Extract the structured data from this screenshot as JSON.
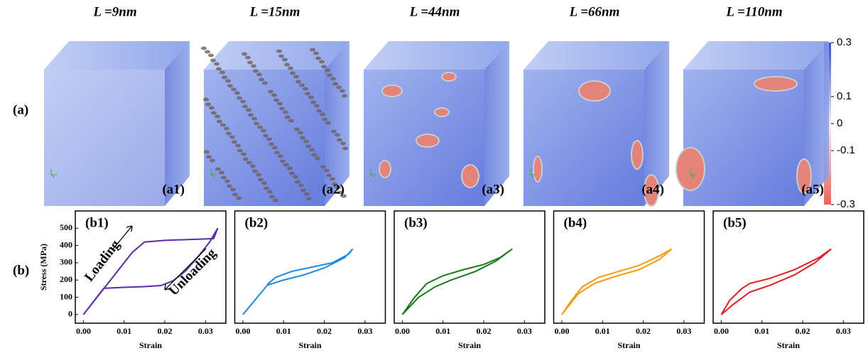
{
  "panel_labels": [
    "(a)",
    "(b)"
  ],
  "cubes": [
    {
      "title": "L =9nm",
      "label": "(a1)"
    },
    {
      "title": "L =15nm",
      "label": "(a2)"
    },
    {
      "title": "L =44nm",
      "label": "(a3)"
    },
    {
      "title": "L =66nm",
      "label": "(a4)"
    },
    {
      "title": "L =110nm",
      "label": "(a5)"
    }
  ],
  "colorbar": {
    "lim": [
      -0.3,
      0.3
    ],
    "ticks": [
      0.3,
      0.1,
      0,
      -0.1,
      -0.3
    ]
  },
  "chart_data": [
    {
      "type": "line",
      "title": "(b1)",
      "xlabel": "Strain",
      "ylabel": "Stress (MPa)",
      "color": "#5b2aa8",
      "x": [
        0,
        0.005,
        0.012,
        0.015,
        0.02,
        0.03,
        0.032,
        0.033,
        0.031,
        0.028,
        0.025,
        0.022,
        0.019,
        0.015,
        0.01,
        0.005,
        0
      ],
      "values": [
        0,
        150,
        360,
        420,
        430,
        438,
        440,
        500,
        420,
        330,
        250,
        195,
        168,
        162,
        158,
        152,
        0
      ],
      "xlim": [
        -0.002,
        0.035
      ],
      "ylim": [
        -50,
        600
      ],
      "xticks": [
        {
          "value": 0,
          "label": "0.00"
        },
        {
          "value": 0.01,
          "label": "0.01"
        },
        {
          "value": 0.02,
          "label": "0.02"
        },
        {
          "value": 0.03,
          "label": "0.03"
        }
      ],
      "yticks": [
        0,
        100,
        200,
        300,
        400,
        500
      ],
      "annotations": [
        "Loading",
        "Unloading"
      ]
    },
    {
      "type": "line",
      "title": "(b2)",
      "xlabel": "Strain",
      "color": "#1e88e5",
      "x": [
        0,
        0.006,
        0.01,
        0.015,
        0.02,
        0.025,
        0.027,
        0.026,
        0.022,
        0.018,
        0.012,
        0.008,
        0.006
      ],
      "values": [
        0,
        170,
        200,
        230,
        270,
        330,
        380,
        350,
        300,
        280,
        250,
        215,
        175
      ],
      "xlim": [
        -0.002,
        0.035
      ],
      "ylim": [
        -50,
        600
      ],
      "xticks": [
        {
          "value": 0,
          "label": "0.00"
        },
        {
          "value": 0.01,
          "label": "0.01"
        },
        {
          "value": 0.02,
          "label": "0.02"
        },
        {
          "value": 0.03,
          "label": "0.03"
        }
      ]
    },
    {
      "type": "line",
      "title": "(b3)",
      "xlabel": "Strain",
      "color": "#1a7a1a",
      "x": [
        0,
        0.004,
        0.008,
        0.012,
        0.018,
        0.023,
        0.027,
        0.024,
        0.02,
        0.015,
        0.01,
        0.006,
        0.003,
        0
      ],
      "values": [
        0,
        100,
        160,
        200,
        250,
        310,
        380,
        330,
        290,
        260,
        225,
        180,
        100,
        0
      ],
      "xlim": [
        -0.002,
        0.035
      ],
      "ylim": [
        -50,
        600
      ],
      "xticks": [
        {
          "value": 0,
          "label": "0.00"
        },
        {
          "value": 0.01,
          "label": "0.01"
        },
        {
          "value": 0.02,
          "label": "0.02"
        },
        {
          "value": 0.03,
          "label": "0.03"
        }
      ]
    },
    {
      "type": "line",
      "title": "(b4)",
      "xlabel": "Strain",
      "color": "#f39c12",
      "x": [
        0,
        0.004,
        0.008,
        0.013,
        0.019,
        0.024,
        0.027,
        0.024,
        0.019,
        0.014,
        0.009,
        0.005,
        0.002,
        0
      ],
      "values": [
        0,
        120,
        180,
        220,
        260,
        320,
        380,
        340,
        285,
        250,
        215,
        160,
        70,
        0
      ],
      "xlim": [
        -0.002,
        0.035
      ],
      "ylim": [
        -50,
        600
      ],
      "xticks": [
        {
          "value": 0,
          "label": "0.00"
        },
        {
          "value": 0.01,
          "label": "0.01"
        },
        {
          "value": 0.02,
          "label": "0.02"
        },
        {
          "value": 0.03,
          "label": "0.03"
        }
      ]
    },
    {
      "type": "line",
      "title": "(b5)",
      "xlabel": "Strain",
      "color": "#e02020",
      "x": [
        0,
        0.003,
        0.007,
        0.012,
        0.018,
        0.023,
        0.027,
        0.024,
        0.018,
        0.012,
        0.007,
        0.005,
        0.002,
        0
      ],
      "values": [
        0,
        60,
        130,
        170,
        230,
        300,
        380,
        330,
        260,
        210,
        180,
        150,
        80,
        0
      ],
      "xlim": [
        -0.002,
        0.035
      ],
      "ylim": [
        -50,
        600
      ],
      "xticks": [
        {
          "value": 0,
          "label": "0.00"
        },
        {
          "value": 0.01,
          "label": "0.01"
        },
        {
          "value": 0.02,
          "label": "0.02"
        },
        {
          "value": 0.03,
          "label": "0.03"
        }
      ]
    }
  ]
}
